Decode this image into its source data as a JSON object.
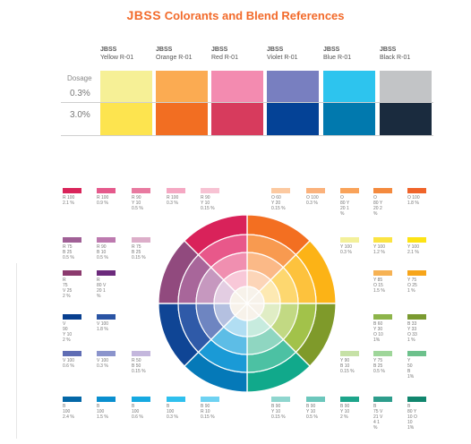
{
  "header": {
    "brand": "JBSS",
    "title": "Colorants and Blend References"
  },
  "dosage": {
    "label": "Dosage",
    "rows": [
      "0.3%",
      "3.0%"
    ],
    "columns": [
      {
        "code": "JBSS",
        "name": "Yellow R-01",
        "light": "#f6f096",
        "dark": "#fde44f"
      },
      {
        "code": "JBSS",
        "name": "Orange R-01",
        "light": "#fbab52",
        "dark": "#f26e22"
      },
      {
        "code": "JBSS",
        "name": "Red R-01",
        "light": "#f38bb0",
        "dark": "#d73b5d"
      },
      {
        "code": "JBSS",
        "name": "Violet R-01",
        "light": "#787fc0",
        "dark": "#044296"
      },
      {
        "code": "JBSS",
        "name": "Blue R-01",
        "light": "#2dc4ee",
        "dark": "#0179ae"
      },
      {
        "code": "JBSS",
        "name": "Black R-01",
        "light": "#c2c4c6",
        "dark": "#1a2b3e"
      }
    ]
  },
  "blends": [
    {
      "color": "#d9245a",
      "lines": [
        "R 100",
        "2.1 %"
      ]
    },
    {
      "color": "#e55a8c",
      "lines": [
        "R 100",
        "0.9 %"
      ]
    },
    {
      "color": "#e87aa0",
      "lines": [
        "R  90",
        "Y  10",
        "0.5 %"
      ]
    },
    {
      "color": "#f5a8c3",
      "lines": [
        "R 100",
        "0.3 %"
      ]
    },
    {
      "color": "#f7c2d3",
      "lines": [
        "R    90",
        "Y    10",
        "0.15 %"
      ]
    },
    {
      "color": "#fcc9a0",
      "lines": [
        "O    60",
        "Y    20",
        "0.15 %"
      ]
    },
    {
      "color": "#fbb27c",
      "lines": [
        "O 100",
        "0.3 %"
      ]
    },
    {
      "color": "#f9a35a",
      "lines": [
        "O",
        "80  Y",
        "20  1",
        "%"
      ]
    },
    {
      "color": "#f48a3e",
      "lines": [
        "O",
        "80  Y",
        "20  2",
        "%"
      ]
    },
    {
      "color": "#f0642a",
      "lines": [
        "O 100",
        "1.8 %"
      ]
    },
    {
      "color": "#a06096",
      "lines": [
        "R   75",
        "B   25",
        "0.5 %"
      ]
    },
    {
      "color": "#bd7aaf",
      "lines": [
        "R  90",
        "B  10",
        "0.5 %"
      ]
    },
    {
      "color": "#dcaec9",
      "lines": [
        "R   75",
        "B   25",
        "0.15 %"
      ]
    },
    {
      "color": "#f3f09a",
      "lines": [
        "Y 100",
        "0.3 %"
      ]
    },
    {
      "color": "#fbe443",
      "lines": [
        "Y 100",
        "1.2 %"
      ]
    },
    {
      "color": "#fde315",
      "lines": [
        "Y 100",
        "2.1 %"
      ]
    },
    {
      "color": "#8b3a6e",
      "lines": [
        "R",
        "75",
        "V   25",
        "2 %"
      ]
    },
    {
      "color": "#6c2a7c",
      "lines": [
        "R",
        "80  V",
        "20  1",
        "%"
      ]
    },
    {
      "color": "#f6b254",
      "lines": [
        "Y   85",
        "O   15",
        "1.5 %"
      ]
    },
    {
      "color": "#f7a51a",
      "lines": [
        "Y   75",
        "O  25",
        "1 %"
      ]
    },
    {
      "color": "#083f8f",
      "lines": [
        "V",
        "90",
        "Y  10",
        "2 %"
      ]
    },
    {
      "color": "#2a54a4",
      "lines": [
        "V 100",
        "1.8 %"
      ]
    },
    {
      "color": "#8db44a",
      "lines": [
        "B  60",
        "Y  30",
        "O   10",
        "1%"
      ]
    },
    {
      "color": "#7a9a30",
      "lines": [
        "B   33",
        "Y   33",
        "O   33",
        "1 %"
      ]
    },
    {
      "color": "#5f6db4",
      "lines": [
        "V 100",
        "0.6 %"
      ]
    },
    {
      "color": "#8b94cc",
      "lines": [
        "V 100",
        "0.3 %"
      ]
    },
    {
      "color": "#c4b7dd",
      "lines": [
        "R    50",
        "B   50",
        "0.15 %"
      ]
    },
    {
      "color": "#c6e1a6",
      "lines": [
        "Y    90",
        "B   10",
        "0.15 %"
      ]
    },
    {
      "color": "#9fd69a",
      "lines": [
        "Y 75",
        "B 25",
        "0.5 %"
      ]
    },
    {
      "color": "#6dc18c",
      "lines": [
        "Y",
        "50",
        "B",
        "1%"
      ]
    },
    {
      "color": "#0467a7",
      "lines": [
        "B",
        "100",
        "2.4 %"
      ]
    },
    {
      "color": "#0a8fcf",
      "lines": [
        "B",
        "100",
        "1.5 %"
      ]
    },
    {
      "color": "#16a9e1",
      "lines": [
        "B",
        "100",
        "0.6 %"
      ]
    },
    {
      "color": "#2fc0ee",
      "lines": [
        "B",
        "100",
        "0.3 %"
      ]
    },
    {
      "color": "#6ed2f2",
      "lines": [
        "B    90",
        "R    10",
        "0.15 %"
      ]
    },
    {
      "color": "#8fd6cf",
      "lines": [
        "B   90",
        "Y   10",
        "0.15 %"
      ]
    },
    {
      "color": "#6cc7bc",
      "lines": [
        "B   90",
        "Y   10",
        "0.5 %"
      ]
    },
    {
      "color": "#1da58b",
      "lines": [
        "B 90",
        "Y 10",
        "2 %"
      ]
    },
    {
      "color": "#2d9d8c",
      "lines": [
        "B",
        "75  V",
        "21  V",
        "4    1",
        "%"
      ]
    },
    {
      "color": "#11866e",
      "lines": [
        "B",
        "80  Y",
        "10  O",
        "10",
        "1%"
      ]
    }
  ],
  "wheel": {
    "segment_colors": [
      [
        "#f36f21",
        "#f89a50",
        "#fbb987",
        "#fcd5b8"
      ],
      [
        "#fcb316",
        "#fdc23d",
        "#fdd76f",
        "#fde9b2"
      ],
      [
        "#7f9a2a",
        "#a2c24a",
        "#c2d983",
        "#e0edc5"
      ],
      [
        "#11a98b",
        "#4cc1a3",
        "#8fd6c1",
        "#c7ebde"
      ],
      [
        "#0579b8",
        "#1a9ad6",
        "#5dbde6",
        "#b1def3"
      ],
      [
        "#0f4595",
        "#2f5aa8",
        "#6e85c1",
        "#b4c0e0"
      ],
      [
        "#914a7e",
        "#a8669a",
        "#c698bf",
        "#e3cde2"
      ],
      [
        "#d9225a",
        "#e8588a",
        "#f08fb0",
        "#f8c8d8"
      ]
    ],
    "inner_overlays": [
      [
        "#ffffff",
        "#f2ef8a",
        "#f6ee3a"
      ],
      [
        "#9ed06a",
        "#7ec8a6",
        "#4ab6c9"
      ]
    ]
  }
}
